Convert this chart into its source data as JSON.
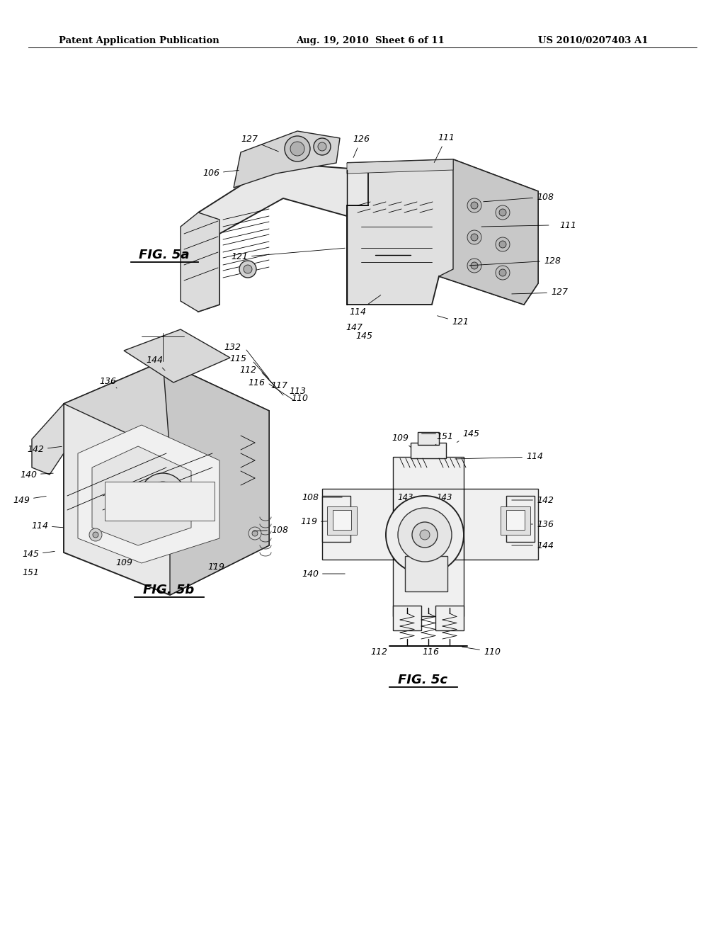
{
  "background_color": "#ffffff",
  "fig_width": 10.24,
  "fig_height": 13.2,
  "dpi": 100,
  "header_left": "Patent Application Publication",
  "header_center": "Aug. 19, 2010  Sheet 6 of 11",
  "header_right": "US 2010/0207403 A1",
  "fig5a_label": "FIG. 5a",
  "fig5b_label": "FIG. 5b",
  "fig5c_label": "FIG. 5c",
  "text_color": "#000000",
  "line_color": "#000000",
  "lw_main": 1.0,
  "lw_thin": 0.6,
  "lw_thick": 1.4
}
